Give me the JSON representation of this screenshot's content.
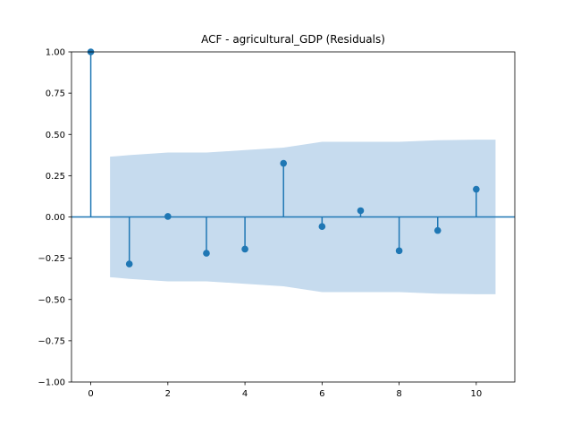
{
  "chart_data": {
    "type": "stem",
    "title": "ACF - agricultural_GDP (Residuals)",
    "xlabel": "",
    "ylabel": "",
    "xlim": [
      -0.5,
      11
    ],
    "ylim": [
      -1.0,
      1.0
    ],
    "x_ticks": [
      0,
      2,
      4,
      6,
      8,
      10
    ],
    "x_tick_labels": [
      "0",
      "2",
      "4",
      "6",
      "8",
      "10"
    ],
    "y_ticks": [
      -1.0,
      -0.75,
      -0.5,
      -0.25,
      0.0,
      0.25,
      0.5,
      0.75,
      1.0
    ],
    "y_tick_labels": [
      "−1.00",
      "−0.75",
      "−0.50",
      "−0.25",
      "0.00",
      "0.25",
      "0.50",
      "0.75",
      "1.00"
    ],
    "grid": false,
    "lags": [
      0,
      1,
      2,
      3,
      4,
      5,
      6,
      7,
      8,
      9,
      10
    ],
    "values": [
      1.0,
      -0.285,
      0.003,
      -0.22,
      -0.195,
      0.325,
      -0.058,
      0.038,
      -0.205,
      -0.082,
      0.168
    ],
    "confidence_band": {
      "x": [
        0.5,
        1,
        2,
        3,
        4,
        5,
        6,
        7,
        8,
        9,
        10,
        10.5
      ],
      "upper": [
        0.365,
        0.375,
        0.39,
        0.39,
        0.405,
        0.42,
        0.455,
        0.455,
        0.455,
        0.465,
        0.468,
        0.468
      ],
      "lower": [
        -0.365,
        -0.375,
        -0.39,
        -0.39,
        -0.405,
        -0.42,
        -0.455,
        -0.455,
        -0.455,
        -0.465,
        -0.468,
        -0.468
      ]
    },
    "colors": {
      "stem": "#1f77b4",
      "marker": "#1f77b4",
      "band": "#c6dbee",
      "zero_line": "#1f77b4"
    }
  }
}
